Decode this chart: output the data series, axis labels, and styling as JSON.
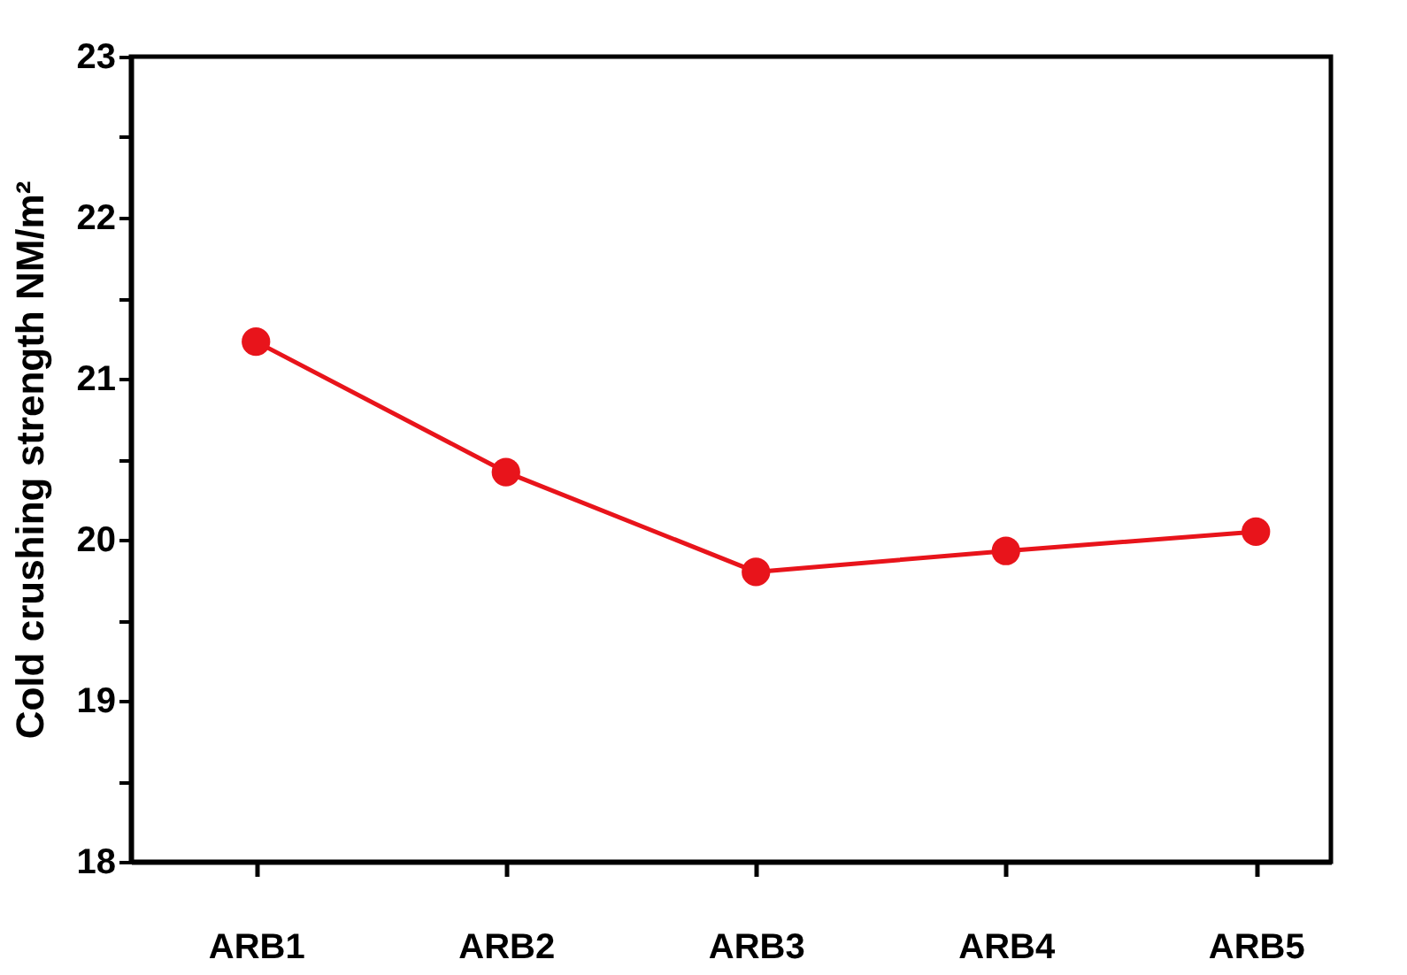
{
  "chart_data": {
    "type": "line",
    "ylabel": "Cold crushing strength NM/m²",
    "categories": [
      "ARB1",
      "ARB2",
      "ARB3",
      "ARB4",
      "ARB5"
    ],
    "series": [
      {
        "color": "#e8141b",
        "values": [
          21.23,
          20.42,
          19.8,
          19.93,
          20.05
        ]
      }
    ],
    "ylim": [
      18,
      23
    ],
    "yticks": [
      18,
      {
        "value": 18.5,
        "label": null
      },
      19,
      {
        "value": 19.5,
        "label": null
      },
      20,
      {
        "value": 20.5,
        "label": null
      },
      21,
      {
        "value": 21.5,
        "label": null
      },
      22,
      {
        "value": 22.5,
        "label": null
      },
      23
    ],
    "marker": "circle",
    "line_style": "solid"
  }
}
